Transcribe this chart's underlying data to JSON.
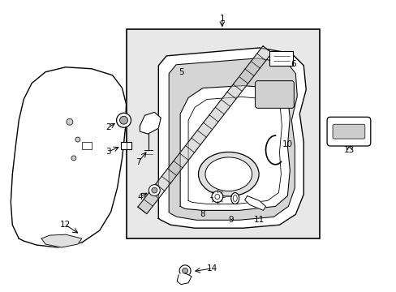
{
  "bg": "#ffffff",
  "box_bg": "#e8e8e8",
  "fig_w": 4.89,
  "fig_h": 3.6,
  "dpi": 100,
  "fs": 7.5,
  "lc": "#000000"
}
